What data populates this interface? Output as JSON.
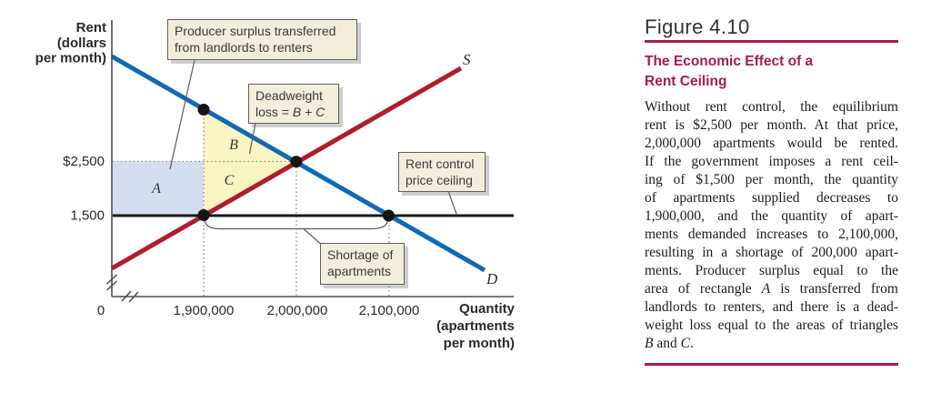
{
  "chart": {
    "y_axis_title_lines": [
      "Rent",
      "(dollars",
      "per month)"
    ],
    "x_axis_title_lines": [
      "Quantity",
      "(apartments",
      "per month)"
    ],
    "y_ticks": {
      "t2500": "$2,500",
      "t1500": "1,500"
    },
    "x_ticks": {
      "t0": "0",
      "t19": "1,900,000",
      "t20": "2,000,000",
      "t21": "2,100,000"
    },
    "region_labels": {
      "A": "A",
      "B": "B",
      "C": "C"
    },
    "curve_labels": {
      "supply": "S",
      "demand": "D"
    },
    "callouts": {
      "producer_surplus": "Producer surplus transferred<br>from landlords to renters",
      "deadweight": "Deadweight<br>loss = <i>B</i> + <i>C</i>",
      "rent_control": "Rent control<br>price ceiling",
      "shortage": "Shortage of<br>apartments"
    },
    "colors": {
      "supply": "#b01c2a",
      "demand": "#1169b4",
      "ceiling": "#1a1a1a",
      "area_A": "#d3ddf0",
      "area_BC": "#faf3c2",
      "callout_bg": "#f3eedb"
    }
  },
  "figure": {
    "label": "Figure 4.10",
    "accent_color": "#a81c4b",
    "title_lines": [
      "The Economic Effect of a",
      "Rent Ceiling"
    ],
    "body_lines": [
      "Without rent control, the equilibrium",
      "rent is $2,500 per month. At that price,",
      "2,000,000 apartments would be rented.",
      "If the government imposes a rent ceil-",
      "ing of $1,500 per month, the quantity",
      "of apartments supplied decreases to",
      "1,900,000, and the quantity of apart-",
      "ments demanded increases to 2,100,000,",
      "resulting in a shortage of 200,000 apart-",
      "ments. Producer surplus equal to the",
      "area of rectangle <i>A</i> is transferred from",
      "landlords to renters, and there is a dead-",
      "weight loss equal to the areas of triangles",
      "<i>B</i> and <i>C</i>."
    ]
  },
  "chart_data": {
    "type": "line",
    "title": "The Economic Effect of a Rent Ceiling",
    "xlabel": "Quantity (apartments per month)",
    "ylabel": "Rent (dollars per month)",
    "x_tick_values": [
      0,
      1900000,
      2000000,
      2100000
    ],
    "x_tick_labels": [
      "0",
      "1,900,000",
      "2,000,000",
      "2,100,000"
    ],
    "y_tick_values": [
      1500,
      2500
    ],
    "y_tick_labels": [
      "1,500",
      "$2,500"
    ],
    "axis_break": {
      "x": true,
      "y": true
    },
    "grid": false,
    "series": [
      {
        "name": "S",
        "description": "Supply",
        "color": "#b01c2a",
        "points": [
          [
            1800000,
            500
          ],
          [
            1900000,
            1500
          ],
          [
            2000000,
            2500
          ],
          [
            2180000,
            4300
          ]
        ]
      },
      {
        "name": "D",
        "description": "Demand",
        "color": "#1169b4",
        "points": [
          [
            1800000,
            4500
          ],
          [
            1900000,
            3500
          ],
          [
            2000000,
            2500
          ],
          [
            2200000,
            500
          ]
        ]
      },
      {
        "name": "Rent control price ceiling",
        "description": "Price ceiling at $1,500",
        "color": "#1a1a1a",
        "points": [
          [
            1800000,
            1500
          ],
          [
            2230000,
            1500
          ]
        ]
      }
    ],
    "key_points": [
      {
        "label": "equilibrium",
        "x": 2000000,
        "y": 2500
      },
      {
        "label": "quantity supplied under ceiling",
        "x": 1900000,
        "y": 1500
      },
      {
        "label": "quantity demanded under ceiling",
        "x": 2100000,
        "y": 1500
      },
      {
        "label": "demand price at 1,900,000",
        "x": 1900000,
        "y": 3500
      }
    ],
    "regions": [
      {
        "label": "A",
        "color": "#d3ddf0",
        "description": "Producer surplus transferred from landlords to renters",
        "bounds": "rectangle from rent 1,500 to 2,500, quantity 0-axis to 1,900,000"
      },
      {
        "label": "B",
        "color": "#faf3c2",
        "description": "Deadweight loss upper triangle (under demand, above $2,500)"
      },
      {
        "label": "C",
        "color": "#faf3c2",
        "description": "Deadweight loss lower triangle (above supply, below $2,500)"
      }
    ],
    "shortage": {
      "from": 1900000,
      "to": 2100000,
      "amount": 200000
    },
    "legend_position": "curve-end labels S and D"
  }
}
